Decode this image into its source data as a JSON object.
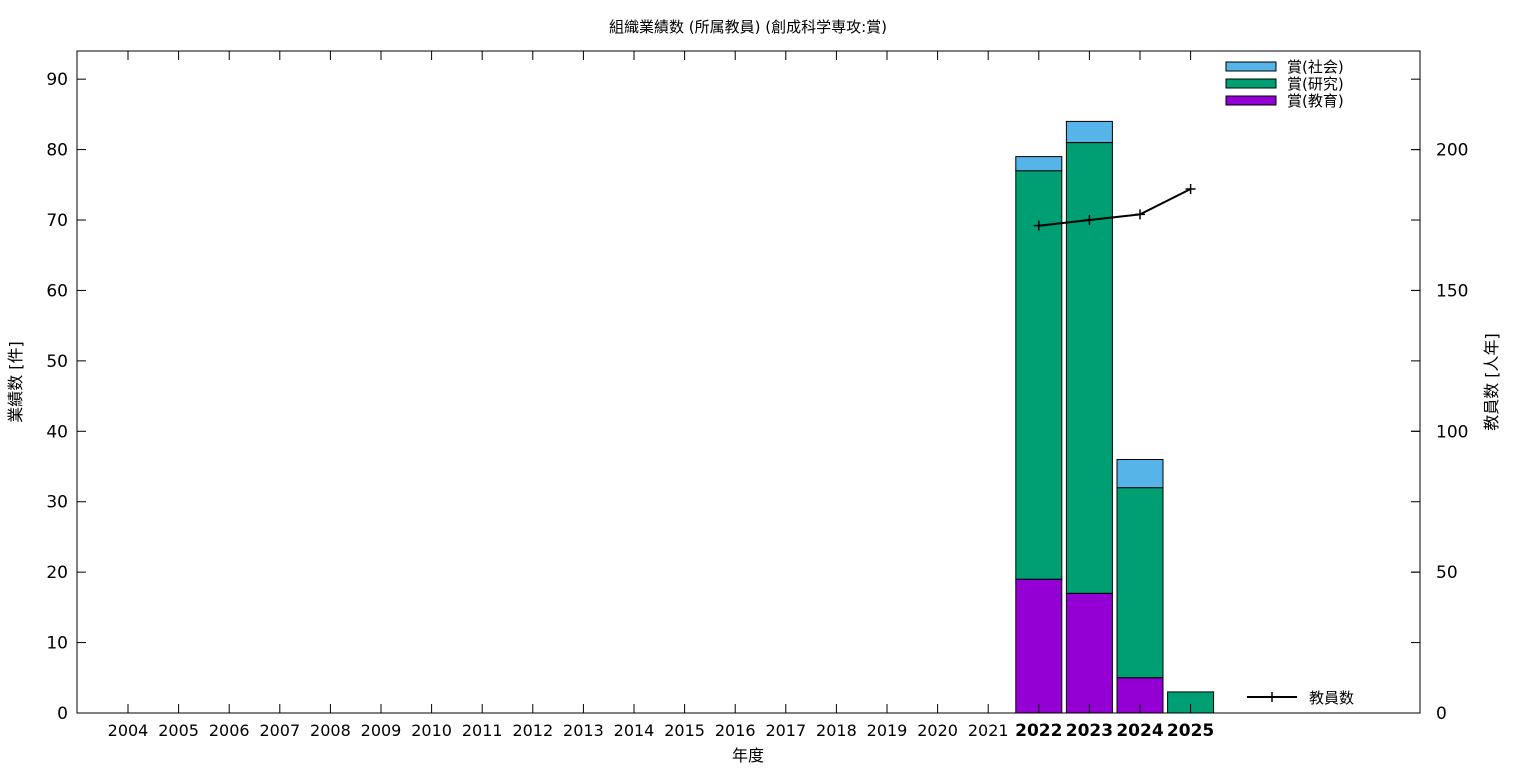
{
  "chart_data": {
    "type": "bar",
    "stacked": true,
    "title": "組織業績数 (所属教員) (創成科学専攻:賞)",
    "xlabel": "年度",
    "ylabel": "業績数 [件]",
    "y2label": "教員数 [人年]",
    "ylim": [
      0,
      94
    ],
    "y2lim": [
      0,
      235
    ],
    "yticks": [
      0,
      10,
      20,
      30,
      40,
      50,
      60,
      70,
      80,
      90
    ],
    "y2ticks": [
      0,
      50,
      100,
      150,
      200
    ],
    "categories": [
      "2004",
      "2005",
      "2006",
      "2007",
      "2008",
      "2009",
      "2010",
      "2011",
      "2012",
      "2013",
      "2014",
      "2015",
      "2016",
      "2017",
      "2018",
      "2019",
      "2020",
      "2021",
      "2022",
      "2023",
      "2024",
      "2025"
    ],
    "emphasized_categories": [
      "2022",
      "2023",
      "2024",
      "2025"
    ],
    "series": [
      {
        "name": "賞(教育)",
        "color": "#9400d3",
        "values": [
          0,
          0,
          0,
          0,
          0,
          0,
          0,
          0,
          0,
          0,
          0,
          0,
          0,
          0,
          0,
          0,
          0,
          0,
          19,
          17,
          5,
          0
        ]
      },
      {
        "name": "賞(研究)",
        "color": "#009e73",
        "values": [
          0,
          0,
          0,
          0,
          0,
          0,
          0,
          0,
          0,
          0,
          0,
          0,
          0,
          0,
          0,
          0,
          0,
          0,
          58,
          64,
          27,
          3
        ]
      },
      {
        "name": "賞(社会)",
        "color": "#56b4e9",
        "values": [
          0,
          0,
          0,
          0,
          0,
          0,
          0,
          0,
          0,
          0,
          0,
          0,
          0,
          0,
          0,
          0,
          0,
          0,
          2,
          3,
          4,
          0
        ]
      }
    ],
    "line_series": {
      "name": "教員数",
      "color": "#000000",
      "axis": "right",
      "x": [
        "2022",
        "2023",
        "2024",
        "2025"
      ],
      "values": [
        173,
        175,
        177,
        186
      ]
    },
    "legend_placement": "top-right",
    "grid": false
  }
}
